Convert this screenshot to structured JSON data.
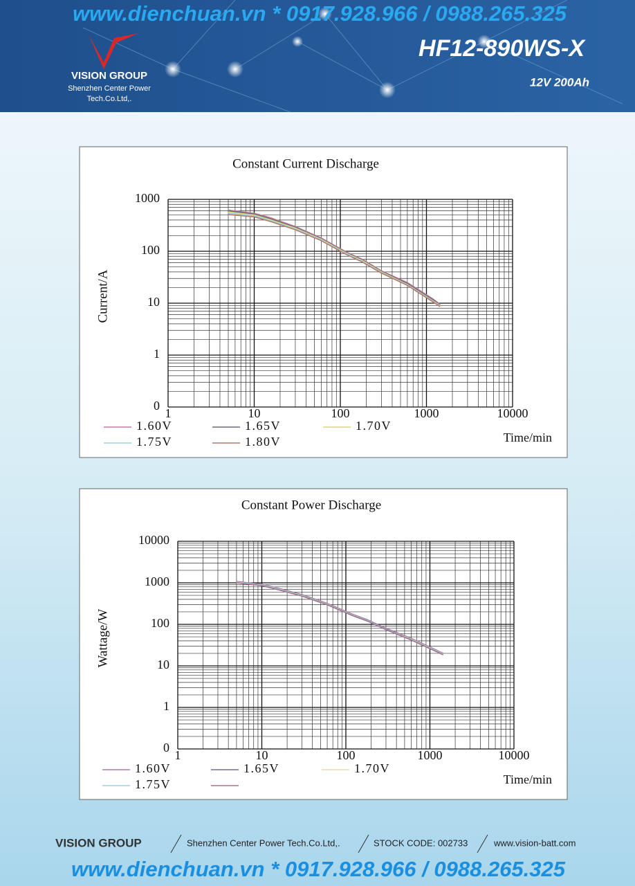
{
  "header": {
    "watermark": "www.dienchuan.vn * 0917.928.966 / 0988.265.325",
    "brand": "VISION GROUP",
    "company_line1": "Shenzhen Center Power",
    "company_line2": "Tech.Co.Ltd,.",
    "model": "HF12-890WS-X",
    "spec": "12V 200Ah"
  },
  "chart_data": [
    {
      "type": "line",
      "title": "Constant Current Discharge",
      "y_label": "Current/A",
      "x_label": "Time/min",
      "log_x": true,
      "log_y": true,
      "grid": true,
      "xlim": [
        1,
        10000
      ],
      "xticks": [
        1,
        10,
        100,
        1000,
        10000
      ],
      "ylim": [
        0.1,
        1000
      ],
      "yticks": [
        {
          "value": 0.1,
          "label": "0"
        },
        1,
        10,
        100,
        1000
      ],
      "x": [
        5,
        10,
        15,
        30,
        60,
        120,
        180,
        300,
        600,
        1200,
        1440
      ],
      "series": [
        {
          "name": "1.60V",
          "color": "#c27aa2",
          "values": [
            620,
            540,
            450,
            300,
            180,
            95,
            70,
            42,
            25,
            12,
            9.5
          ]
        },
        {
          "name": "1.65V",
          "color": "#6a6a78",
          "values": [
            600,
            520,
            430,
            290,
            175,
            92,
            68,
            41,
            24,
            11.5,
            9.2
          ]
        },
        {
          "name": "1.70V",
          "color": "#e6d478",
          "values": [
            570,
            500,
            410,
            280,
            170,
            90,
            66,
            40,
            23,
            11,
            9
          ]
        },
        {
          "name": "1.75V",
          "color": "#9ad4e0",
          "values": [
            540,
            480,
            395,
            270,
            165,
            88,
            64,
            39,
            22.5,
            10.8,
            8.8
          ]
        },
        {
          "name": "1.80V",
          "color": "#b57a6c",
          "values": [
            510,
            460,
            380,
            260,
            160,
            85,
            62,
            38,
            22,
            10.5,
            8.6
          ]
        }
      ]
    },
    {
      "type": "line",
      "title": "Constant Power Discharge",
      "y_label": "Wattage/W",
      "x_label": "Time/min",
      "log_x": true,
      "log_y": true,
      "grid": true,
      "xlim": [
        1,
        10000
      ],
      "xticks": [
        1,
        10,
        100,
        1000,
        10000
      ],
      "ylim": [
        0.1,
        10000
      ],
      "yticks": [
        {
          "value": 0.1,
          "label": "0"
        },
        1,
        10,
        100,
        1000,
        10000
      ],
      "x": [
        5,
        10,
        15,
        30,
        60,
        120,
        180,
        300,
        600,
        1200,
        1440
      ],
      "series": [
        {
          "name": "1.60V",
          "color": "#b07aa6",
          "values": [
            1080,
            920,
            760,
            520,
            320,
            175,
            130,
            80,
            46,
            24,
            20
          ]
        },
        {
          "name": "1.65V",
          "color": "#6d6aa6",
          "values": [
            1060,
            900,
            745,
            510,
            312,
            171,
            127,
            78,
            45,
            23.5,
            19.6
          ]
        },
        {
          "name": "1.70V",
          "color": "#e6e0a8",
          "values": [
            1040,
            885,
            730,
            500,
            305,
            168,
            124,
            76,
            44,
            23,
            19.2
          ]
        },
        {
          "name": "1.75V",
          "color": "#9ad4e0",
          "values": [
            1020,
            870,
            715,
            490,
            300,
            165,
            122,
            75,
            43,
            22.5,
            18.8
          ]
        },
        {
          "name": null,
          "color": "#a0708c",
          "values": [
            1000,
            855,
            700,
            480,
            295,
            162,
            120,
            74,
            42,
            22,
            18.5
          ]
        }
      ]
    }
  ],
  "footer": {
    "brand": "VISION GROUP",
    "company": "Shenzhen Center Power Tech.Co.Ltd,.",
    "stock": "STOCK CODE: 002733",
    "website": "www.vision-batt.com",
    "watermark": "www.dienchuan.vn * 0917.928.966 / 0988.265.325"
  }
}
